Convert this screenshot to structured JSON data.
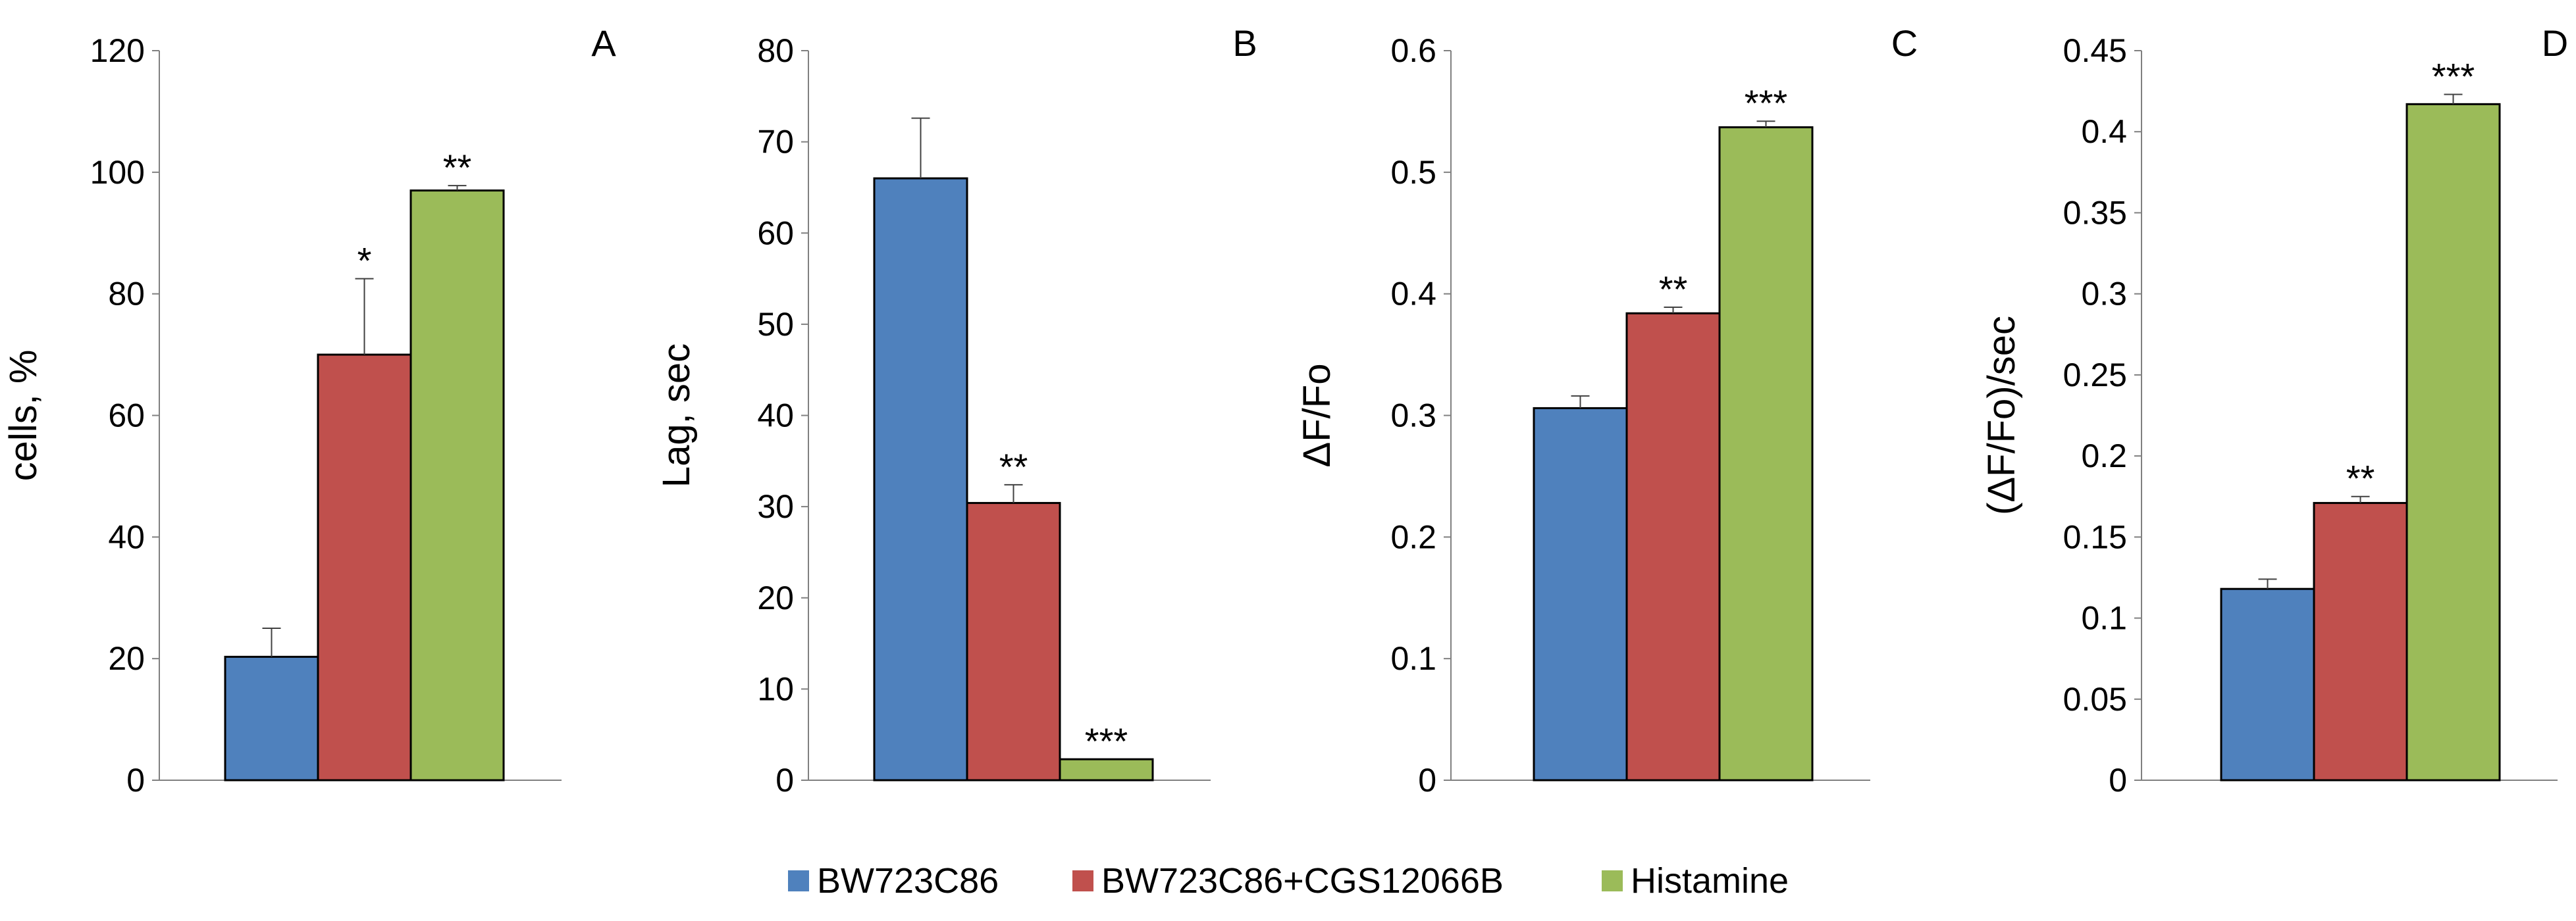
{
  "chart_data": [
    {
      "type": "bar",
      "panel": "A",
      "ylabel": "cells, %",
      "ylim": [
        0,
        120
      ],
      "yticks": [
        "0",
        "20",
        "40",
        "60",
        "80",
        "100",
        "120"
      ],
      "categories": [
        "BW723C86",
        "BW723C86+CGS12066B",
        "Histamine"
      ],
      "values": [
        20.3,
        70,
        97
      ],
      "errors": [
        4.7,
        12.5,
        0.8
      ],
      "significance": [
        "",
        "*",
        "**"
      ]
    },
    {
      "type": "bar",
      "panel": "B",
      "ylabel": "Lag, sec",
      "ylim": [
        0,
        80
      ],
      "yticks": [
        "0",
        "10",
        "20",
        "30",
        "40",
        "50",
        "60",
        "70",
        "80"
      ],
      "categories": [
        "BW723C86",
        "BW723C86+CGS12066B",
        "Histamine"
      ],
      "values": [
        66,
        30.4,
        2.3
      ],
      "errors": [
        6.6,
        2.0,
        0
      ],
      "significance": [
        "",
        "**",
        "***"
      ]
    },
    {
      "type": "bar",
      "panel": "C",
      "ylabel": "ΔF/Fo",
      "ylim": [
        0,
        0.6
      ],
      "yticks": [
        "0",
        "0.1",
        "0.2",
        "0.3",
        "0.4",
        "0.5",
        "0.6"
      ],
      "categories": [
        "BW723C86",
        "BW723C86+CGS12066B",
        "Histamine"
      ],
      "values": [
        0.306,
        0.384,
        0.537
      ],
      "errors": [
        0.01,
        0.005,
        0.005
      ],
      "significance": [
        "",
        "**",
        "***"
      ]
    },
    {
      "type": "bar",
      "panel": "D",
      "ylabel": "(ΔF/Fo)/sec",
      "ylim": [
        0,
        0.45
      ],
      "yticks": [
        "0",
        "0.05",
        "0.1",
        "0.15",
        "0.2",
        "0.25",
        "0.3",
        "0.35",
        "0.4",
        "0.45"
      ],
      "categories": [
        "BW723C86",
        "BW723C86+CGS12066B",
        "Histamine"
      ],
      "values": [
        0.118,
        0.171,
        0.417
      ],
      "errors": [
        0.006,
        0.004,
        0.006
      ],
      "significance": [
        "",
        "**",
        "***"
      ]
    }
  ],
  "legend": {
    "placement": "bottom-center",
    "items": [
      {
        "label": "BW723C86",
        "color": "#4F81BD"
      },
      {
        "label": "BW723C86+CGS12066B",
        "color": "#C0504D"
      },
      {
        "label": "Histamine",
        "color": "#9BBB59"
      }
    ]
  },
  "colors": {
    "series": [
      "#4F81BD",
      "#C0504D",
      "#9BBB59"
    ],
    "bar_outline": "#000000",
    "axis": "#808080",
    "error_bar": "#404040"
  }
}
